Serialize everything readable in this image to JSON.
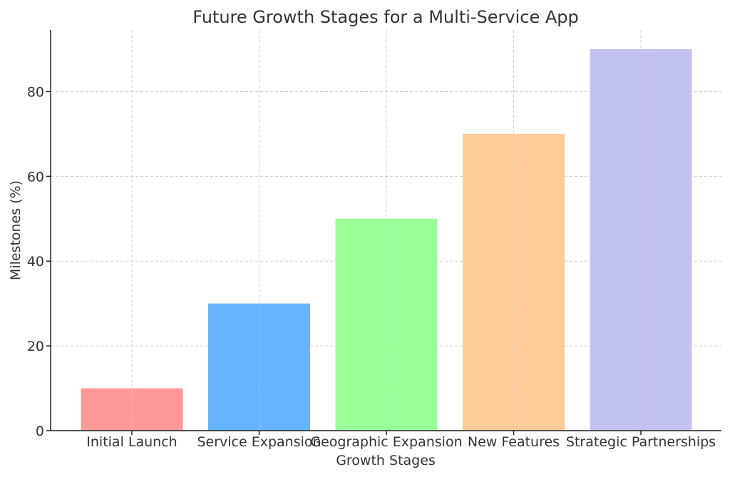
{
  "chart_data": {
    "type": "bar",
    "title": "Future Growth Stages for a Multi-Service App",
    "xlabel": "Growth Stages",
    "ylabel": "Milestones (%)",
    "categories": [
      "Initial Launch",
      "Service Expansion",
      "Geographic Expansion",
      "New Features",
      "Strategic Partnerships"
    ],
    "values": [
      10,
      30,
      50,
      70,
      90
    ],
    "colors": [
      "#ff9999",
      "#66b3ff",
      "#99ff99",
      "#ffcc99",
      "#c2c2f0"
    ],
    "yticks": [
      0,
      20,
      40,
      60,
      80
    ],
    "ylim": [
      0,
      94.5
    ],
    "grid": true,
    "legend": "none"
  }
}
